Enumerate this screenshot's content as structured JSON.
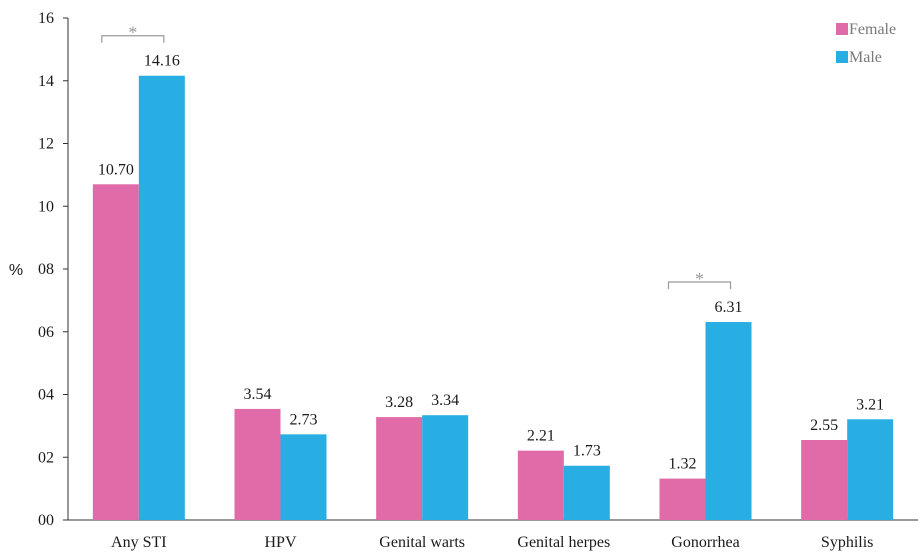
{
  "chart_data": {
    "type": "bar",
    "ylabel": "%",
    "ylim": [
      0,
      16
    ],
    "yticks": [
      0,
      2,
      4,
      6,
      8,
      10,
      12,
      14,
      16
    ],
    "ytick_labels": [
      "00",
      "02",
      "04",
      "06",
      "08",
      "10",
      "12",
      "14",
      "16"
    ],
    "categories": [
      "Any STI",
      "HPV",
      "Genital warts",
      "Genital herpes",
      "Gonorrhea",
      "Syphilis"
    ],
    "series": [
      {
        "name": "Female",
        "color": "#e16aa8",
        "values": [
          10.7,
          3.54,
          3.28,
          2.21,
          1.32,
          2.55
        ],
        "labels": [
          "10.70",
          "3.54",
          "3.28",
          "2.21",
          "1.32",
          "2.55"
        ]
      },
      {
        "name": "Male",
        "color": "#29aee3",
        "values": [
          14.16,
          2.73,
          3.34,
          1.73,
          6.31,
          3.21
        ],
        "labels": [
          "14.16",
          "2.73",
          "3.34",
          "1.73",
          "6.31",
          "3.21"
        ]
      }
    ],
    "legend_position": "top-right",
    "grid": false,
    "significance": [
      {
        "category_index": 0,
        "marker": "*"
      },
      {
        "category_index": 4,
        "marker": "*"
      }
    ]
  }
}
